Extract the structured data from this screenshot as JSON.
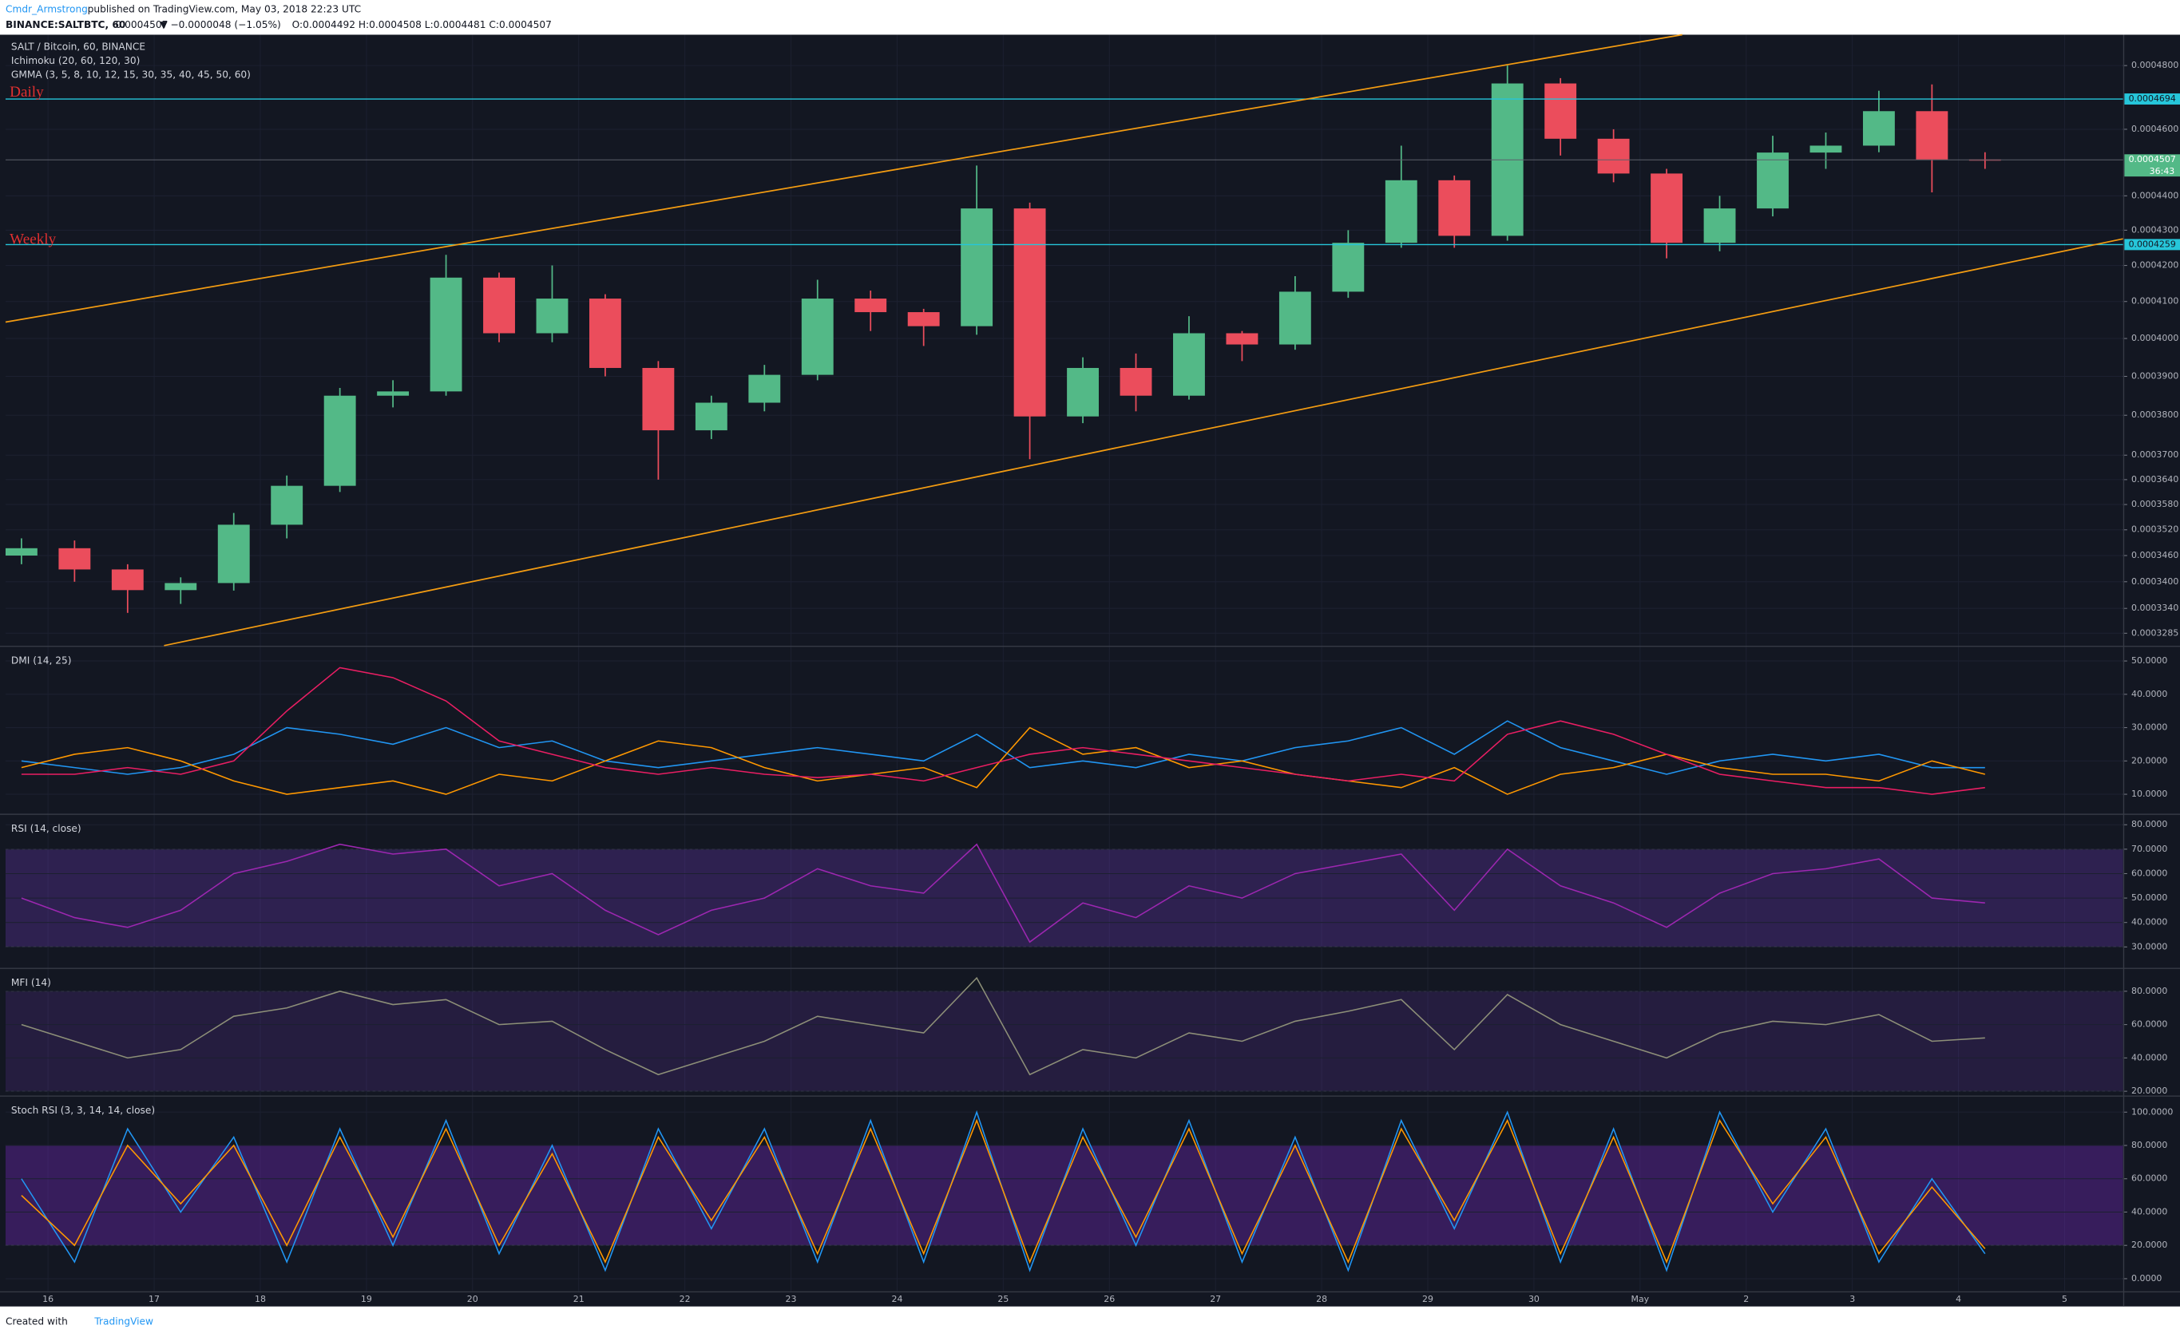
{
  "header": {
    "author": "Cmdr_Armstrong",
    "published": "published on TradingView.com, May 03, 2018 22:23 UTC",
    "symbol": "BINANCE:SALTBTC, 60",
    "price": "0.0004507",
    "change": "▼ −0.0000048 (−1.05%)",
    "ohlc": "O:0.0004492 H:0.0004508 L:0.0004481 C:0.0004507"
  },
  "chart_data": [
    {
      "type": "candlestick",
      "title": "SALT / Bitcoin, 60, BINANCE",
      "indicators": [
        "Ichimoku (20, 60, 120, 30)",
        "GMMA (3, 5, 8, 10, 12, 15, 30, 35, 40, 45, 50, 60)"
      ],
      "annotations": [
        "Daily",
        "Weekly"
      ],
      "log_scale": true,
      "grid": true,
      "up_color": "#53b987",
      "down_color": "#eb4d5c",
      "x": [
        -0.25,
        0.25,
        0.75,
        1.25,
        1.75,
        2.25,
        2.75,
        3.25,
        3.75,
        4.25,
        4.75,
        5.25,
        5.75,
        6.25,
        6.75,
        7.25,
        7.75,
        8.25,
        8.75,
        9.25,
        9.75,
        10.25,
        10.75,
        11.25,
        11.75,
        12.25,
        12.75,
        13.25,
        13.75,
        14.25,
        14.75,
        15.25,
        15.75,
        16.25,
        16.75,
        17.25,
        17.75,
        18.25
      ],
      "open": [
        0.000346,
        0.0003477,
        0.0003428,
        0.0003381,
        0.0003397,
        0.0003532,
        0.0003625,
        0.000385,
        0.0003861,
        0.0004166,
        0.0004014,
        0.0004108,
        0.0003922,
        0.0003762,
        0.0003832,
        0.0003904,
        0.0004108,
        0.0004071,
        0.0004033,
        0.0004363,
        0.0003797,
        0.0003922,
        0.000385,
        0.0004014,
        0.0003984,
        0.0004127,
        0.0004264,
        0.0004446,
        0.0004284,
        0.0004743,
        0.0004571,
        0.0004466,
        0.0004264,
        0.0004363,
        0.0004529,
        0.000455,
        0.0004656,
        0.0004508
      ],
      "high": [
        0.00035,
        0.0003495,
        0.000344,
        0.000341,
        0.000356,
        0.000365,
        0.000387,
        0.000389,
        0.000423,
        0.000418,
        0.00042,
        0.000412,
        0.000394,
        0.000385,
        0.000393,
        0.000416,
        0.000413,
        0.000408,
        0.000449,
        0.000438,
        0.000395,
        0.000396,
        0.000406,
        0.000402,
        0.000417,
        0.00043,
        0.000455,
        0.000446,
        0.00048,
        0.000476,
        0.00046,
        0.000448,
        0.00044,
        0.000458,
        0.000459,
        0.000472,
        0.000474,
        0.000453
      ],
      "low": [
        0.000344,
        0.00034,
        0.000333,
        0.000335,
        0.000338,
        0.00035,
        0.000361,
        0.000382,
        0.000385,
        0.000399,
        0.000399,
        0.00039,
        0.000364,
        0.000374,
        0.000381,
        0.000389,
        0.000402,
        0.000398,
        0.000401,
        0.000369,
        0.000378,
        0.000381,
        0.000384,
        0.000394,
        0.000397,
        0.000411,
        0.000425,
        0.000425,
        0.000427,
        0.000452,
        0.000444,
        0.000422,
        0.000424,
        0.000434,
        0.000448,
        0.000453,
        0.000441,
        0.000448
      ],
      "close": [
        0.0003477,
        0.0003428,
        0.0003381,
        0.0003397,
        0.0003532,
        0.0003625,
        0.000385,
        0.0003861,
        0.0004166,
        0.0004014,
        0.0004108,
        0.0003922,
        0.0003762,
        0.0003832,
        0.0003904,
        0.0004108,
        0.0004071,
        0.0004033,
        0.0004363,
        0.0003797,
        0.0003922,
        0.000385,
        0.0004014,
        0.0003984,
        0.0004127,
        0.0004264,
        0.0004446,
        0.0004284,
        0.0004743,
        0.0004571,
        0.0004466,
        0.0004264,
        0.0004363,
        0.0004529,
        0.000455,
        0.0004656,
        0.0004508,
        0.0004507
      ],
      "levels": [
        0.0004694,
        0.0004259
      ],
      "level_color": "#26c6da",
      "last_price": 0.0004507,
      "last_price_color": "#53b987",
      "countdown": "36:43",
      "xlim": [
        -0.4,
        19.55
      ],
      "ylim": [
        0.0003258,
        0.00049
      ],
      "xticks": [
        {
          "value": 0,
          "label": "16"
        },
        {
          "value": 1,
          "label": "17"
        },
        {
          "value": 2,
          "label": "18"
        },
        {
          "value": 3,
          "label": "19"
        },
        {
          "value": 4,
          "label": "20"
        },
        {
          "value": 5,
          "label": "21"
        },
        {
          "value": 6,
          "label": "22"
        },
        {
          "value": 7,
          "label": "23"
        },
        {
          "value": 8,
          "label": "24"
        },
        {
          "value": 9,
          "label": "25"
        },
        {
          "value": 10,
          "label": "26"
        },
        {
          "value": 11,
          "label": "27"
        },
        {
          "value": 12,
          "label": "28"
        },
        {
          "value": 13,
          "label": "29"
        },
        {
          "value": 14,
          "label": "30"
        },
        {
          "value": 15,
          "label": "May"
        },
        {
          "value": 16,
          "label": "2"
        },
        {
          "value": 17,
          "label": "3"
        },
        {
          "value": 18,
          "label": "4"
        },
        {
          "value": 19,
          "label": "5"
        }
      ],
      "yticks": [
        {
          "value": 0.00048,
          "label": "0.0004800"
        },
        {
          "value": 0.00046,
          "label": "0.0004600"
        },
        {
          "value": 0.00044,
          "label": "0.0004400"
        },
        {
          "value": 0.00043,
          "label": "0.0004300"
        },
        {
          "value": 0.00042,
          "label": "0.0004200"
        },
        {
          "value": 0.00041,
          "label": "0.0004100"
        },
        {
          "value": 0.0004,
          "label": "0.0004000"
        },
        {
          "value": 0.00039,
          "label": "0.0003900"
        },
        {
          "value": 0.00038,
          "label": "0.0003800"
        },
        {
          "value": 0.00037,
          "label": "0.0003700"
        },
        {
          "value": 0.000364,
          "label": "0.0003640"
        },
        {
          "value": 0.000358,
          "label": "0.0003580"
        },
        {
          "value": 0.000352,
          "label": "0.0003520"
        },
        {
          "value": 0.000346,
          "label": "0.0003460"
        },
        {
          "value": 0.00034,
          "label": "0.0003400"
        },
        {
          "value": 0.000334,
          "label": "0.0003340"
        },
        {
          "value": 0.0003285,
          "label": "0.0003285"
        }
      ]
    },
    {
      "type": "line",
      "title": "DMI (14, 25)",
      "grid": true,
      "x": [
        -0.25,
        0.25,
        0.75,
        1.25,
        1.75,
        2.25,
        2.75,
        3.25,
        3.75,
        4.25,
        4.75,
        5.25,
        5.75,
        6.25,
        6.75,
        7.25,
        7.75,
        8.25,
        8.75,
        9.25,
        9.75,
        10.25,
        10.75,
        11.25,
        11.75,
        12.25,
        12.75,
        13.25,
        13.75,
        14.25,
        14.75,
        15.25,
        15.75,
        16.25,
        16.75,
        17.25,
        17.75,
        18.25
      ],
      "series": [
        {
          "color": "#2196f3",
          "values": [
            20,
            18,
            16,
            18,
            22,
            30,
            28,
            25,
            30,
            24,
            26,
            20,
            18,
            20,
            22,
            24,
            22,
            20,
            28,
            18,
            20,
            18,
            22,
            20,
            24,
            26,
            30,
            22,
            32,
            24,
            20,
            16,
            20,
            22,
            20,
            22,
            18,
            18
          ]
        },
        {
          "color": "#ff9800",
          "values": [
            18,
            22,
            24,
            20,
            14,
            10,
            12,
            14,
            10,
            16,
            14,
            20,
            26,
            24,
            18,
            14,
            16,
            18,
            12,
            30,
            22,
            24,
            18,
            20,
            16,
            14,
            12,
            18,
            10,
            16,
            18,
            22,
            18,
            16,
            16,
            14,
            20,
            16
          ]
        },
        {
          "color": "#e91e63",
          "values": [
            16,
            16,
            18,
            16,
            20,
            35,
            48,
            45,
            38,
            26,
            22,
            18,
            16,
            18,
            16,
            15,
            16,
            14,
            18,
            22,
            24,
            22,
            20,
            18,
            16,
            14,
            16,
            14,
            28,
            32,
            28,
            22,
            16,
            14,
            12,
            12,
            10,
            12
          ]
        }
      ],
      "xlim": [
        -0.4,
        19.55
      ],
      "ylim": [
        4.2,
        54.2
      ],
      "yticks": [
        {
          "value": 10,
          "label": "10.0000"
        },
        {
          "value": 20,
          "label": "20.0000"
        },
        {
          "value": 30,
          "label": "30.0000"
        },
        {
          "value": 40,
          "label": "40.0000"
        },
        {
          "value": 50,
          "label": "50.0000"
        }
      ]
    },
    {
      "type": "line",
      "title": "RSI (14, close)",
      "grid": true,
      "band": [
        30,
        70
      ],
      "band_color": "rgba(120,60,200,0.28)",
      "x": [
        -0.25,
        0.25,
        0.75,
        1.25,
        1.75,
        2.25,
        2.75,
        3.25,
        3.75,
        4.25,
        4.75,
        5.25,
        5.75,
        6.25,
        6.75,
        7.25,
        7.75,
        8.25,
        8.75,
        9.25,
        9.75,
        10.25,
        10.75,
        11.25,
        11.75,
        12.25,
        12.75,
        13.25,
        13.75,
        14.25,
        14.75,
        15.25,
        15.75,
        16.25,
        16.75,
        17.25,
        17.75,
        18.25
      ],
      "series": [
        {
          "color": "#9c27b0",
          "values": [
            50,
            42,
            38,
            45,
            60,
            65,
            72,
            68,
            70,
            55,
            60,
            45,
            35,
            45,
            50,
            62,
            55,
            52,
            72,
            32,
            48,
            42,
            55,
            50,
            60,
            64,
            68,
            45,
            70,
            55,
            48,
            38,
            52,
            60,
            62,
            66,
            50,
            48
          ]
        }
      ],
      "xlim": [
        -0.4,
        19.55
      ],
      "ylim": [
        21.5,
        84
      ],
      "yticks": [
        {
          "value": 30,
          "label": "30.0000"
        },
        {
          "value": 40,
          "label": "40.0000"
        },
        {
          "value": 50,
          "label": "50.0000"
        },
        {
          "value": 60,
          "label": "60.0000"
        },
        {
          "value": 70,
          "label": "70.0000"
        },
        {
          "value": 80,
          "label": "80.0000"
        }
      ]
    },
    {
      "type": "line",
      "title": "MFI (14)",
      "grid": true,
      "band": [
        20,
        80
      ],
      "band_color": "rgba(120,60,200,0.18)",
      "x": [
        -0.25,
        0.25,
        0.75,
        1.25,
        1.75,
        2.25,
        2.75,
        3.25,
        3.75,
        4.25,
        4.75,
        5.25,
        5.75,
        6.25,
        6.75,
        7.25,
        7.75,
        8.25,
        8.75,
        9.25,
        9.75,
        10.25,
        10.75,
        11.25,
        11.75,
        12.25,
        12.75,
        13.25,
        13.75,
        14.25,
        14.75,
        15.25,
        15.75,
        16.25,
        16.75,
        17.25,
        17.75,
        18.25
      ],
      "series": [
        {
          "color": "#8d8f78",
          "values": [
            60,
            50,
            40,
            45,
            65,
            70,
            80,
            72,
            75,
            60,
            62,
            45,
            30,
            40,
            50,
            65,
            60,
            55,
            88,
            30,
            45,
            40,
            55,
            50,
            62,
            68,
            75,
            45,
            78,
            60,
            50,
            40,
            55,
            62,
            60,
            66,
            50,
            52
          ]
        }
      ],
      "xlim": [
        -0.4,
        19.55
      ],
      "ylim": [
        17.5,
        93.3
      ],
      "yticks": [
        {
          "value": 20,
          "label": "20.0000"
        },
        {
          "value": 40,
          "label": "40.0000"
        },
        {
          "value": 60,
          "label": "60.0000"
        },
        {
          "value": 80,
          "label": "80.0000"
        }
      ]
    },
    {
      "type": "line",
      "title": "Stoch RSI (3, 3, 14, 14, close)",
      "grid": true,
      "band": [
        20,
        80
      ],
      "band_color": "rgba(110,40,180,0.4)",
      "x": [
        -0.25,
        0.25,
        0.75,
        1.25,
        1.75,
        2.25,
        2.75,
        3.25,
        3.75,
        4.25,
        4.75,
        5.25,
        5.75,
        6.25,
        6.75,
        7.25,
        7.75,
        8.25,
        8.75,
        9.25,
        9.75,
        10.25,
        10.75,
        11.25,
        11.75,
        12.25,
        12.75,
        13.25,
        13.75,
        14.25,
        14.75,
        15.25,
        15.75,
        16.25,
        16.75,
        17.25,
        17.75,
        18.25
      ],
      "series": [
        {
          "color": "#2196f3",
          "values": [
            60,
            10,
            90,
            40,
            85,
            10,
            90,
            20,
            95,
            15,
            80,
            5,
            90,
            30,
            90,
            10,
            95,
            10,
            100,
            5,
            90,
            20,
            95,
            10,
            85,
            5,
            95,
            30,
            100,
            10,
            90,
            5,
            100,
            40,
            90,
            10,
            60,
            15
          ]
        },
        {
          "color": "#ff9800",
          "values": [
            50,
            20,
            80,
            45,
            80,
            20,
            85,
            25,
            90,
            20,
            75,
            10,
            85,
            35,
            85,
            15,
            90,
            15,
            95,
            10,
            85,
            25,
            90,
            15,
            80,
            10,
            90,
            35,
            95,
            15,
            85,
            10,
            95,
            45,
            85,
            15,
            55,
            18
          ]
        }
      ],
      "xlim": [
        -0.4,
        19.55
      ],
      "ylim": [
        -7.5,
        109.2
      ],
      "yticks": [
        {
          "value": 0,
          "label": "0.0000"
        },
        {
          "value": 20,
          "label": "20.0000"
        },
        {
          "value": 40,
          "label": "40.0000"
        },
        {
          "value": 60,
          "label": "60.0000"
        },
        {
          "value": 80,
          "label": "80.0000"
        },
        {
          "value": 100,
          "label": "100.0000"
        }
      ]
    }
  ],
  "footer": {
    "created": "Created with",
    "brand": "TradingView"
  }
}
